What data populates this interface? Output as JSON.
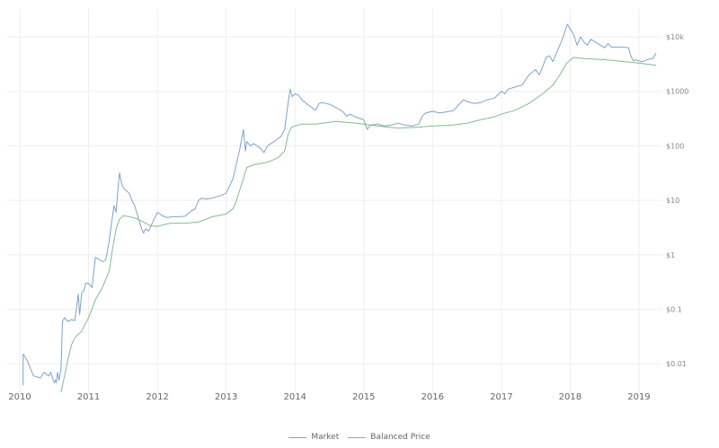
{
  "chart_data": {
    "type": "line",
    "title": "",
    "xlabel": "",
    "ylabel": "",
    "y_scale": "log",
    "ylim": [
      0.003,
      20000
    ],
    "xlim": [
      2009.85,
      2019.35
    ],
    "grid": true,
    "legend_position": "bottom-center",
    "x_ticks": [
      "2010",
      "2011",
      "2012",
      "2013",
      "2014",
      "2015",
      "2016",
      "2017",
      "2018",
      "2019"
    ],
    "y_ticks": [
      {
        "value": 10000,
        "label": "$10k"
      },
      {
        "value": 1000,
        "label": "$1000"
      },
      {
        "value": 100,
        "label": "$100"
      },
      {
        "value": 10,
        "label": "$10"
      },
      {
        "value": 1,
        "label": "$1"
      },
      {
        "value": 0.1,
        "label": "$0.1"
      },
      {
        "value": 0.01,
        "label": "$0.01"
      }
    ],
    "series": [
      {
        "name": "Market",
        "color": "#7fa3c8",
        "points": [
          [
            2010.05,
            0.004
          ],
          [
            2010.05,
            0.015
          ],
          [
            2010.1,
            0.012
          ],
          [
            2010.2,
            0.006
          ],
          [
            2010.3,
            0.0055
          ],
          [
            2010.35,
            0.007
          ],
          [
            2010.42,
            0.006
          ],
          [
            2010.45,
            0.007
          ],
          [
            2010.5,
            0.0045
          ],
          [
            2010.52,
            0.005
          ],
          [
            2010.53,
            0.0045
          ],
          [
            2010.55,
            0.007
          ],
          [
            2010.57,
            0.005
          ],
          [
            2010.6,
            0.008
          ],
          [
            2010.62,
            0.06
          ],
          [
            2010.65,
            0.07
          ],
          [
            2010.7,
            0.06
          ],
          [
            2010.75,
            0.065
          ],
          [
            2010.8,
            0.062
          ],
          [
            2010.85,
            0.19
          ],
          [
            2010.87,
            0.08
          ],
          [
            2010.9,
            0.2
          ],
          [
            2010.93,
            0.22
          ],
          [
            2010.96,
            0.3
          ],
          [
            2011.0,
            0.3
          ],
          [
            2011.05,
            0.25
          ],
          [
            2011.1,
            0.9
          ],
          [
            2011.13,
            0.85
          ],
          [
            2011.17,
            0.8
          ],
          [
            2011.2,
            0.75
          ],
          [
            2011.25,
            0.8
          ],
          [
            2011.3,
            1.8
          ],
          [
            2011.33,
            3.5
          ],
          [
            2011.37,
            8
          ],
          [
            2011.4,
            6
          ],
          [
            2011.43,
            18
          ],
          [
            2011.45,
            32
          ],
          [
            2011.48,
            20
          ],
          [
            2011.52,
            16
          ],
          [
            2011.55,
            15
          ],
          [
            2011.6,
            13
          ],
          [
            2011.63,
            10
          ],
          [
            2011.67,
            8
          ],
          [
            2011.7,
            6
          ],
          [
            2011.73,
            4.5
          ],
          [
            2011.77,
            3
          ],
          [
            2011.8,
            2.5
          ],
          [
            2011.83,
            3
          ],
          [
            2011.87,
            2.7
          ],
          [
            2011.9,
            3.2
          ],
          [
            2011.95,
            4.5
          ],
          [
            2012.0,
            6
          ],
          [
            2012.05,
            5.5
          ],
          [
            2012.1,
            5
          ],
          [
            2012.15,
            4.8
          ],
          [
            2012.2,
            5
          ],
          [
            2012.3,
            5
          ],
          [
            2012.4,
            5.1
          ],
          [
            2012.5,
            6.5
          ],
          [
            2012.55,
            7
          ],
          [
            2012.6,
            10
          ],
          [
            2012.65,
            11
          ],
          [
            2012.7,
            10.5
          ],
          [
            2012.8,
            11
          ],
          [
            2012.9,
            12
          ],
          [
            2013.0,
            13.5
          ],
          [
            2013.1,
            25
          ],
          [
            2013.2,
            90
          ],
          [
            2013.25,
            200
          ],
          [
            2013.28,
            80
          ],
          [
            2013.3,
            120
          ],
          [
            2013.35,
            100
          ],
          [
            2013.4,
            110
          ],
          [
            2013.5,
            90
          ],
          [
            2013.55,
            75
          ],
          [
            2013.6,
            100
          ],
          [
            2013.7,
            120
          ],
          [
            2013.8,
            150
          ],
          [
            2013.85,
            200
          ],
          [
            2013.9,
            600
          ],
          [
            2013.93,
            1100
          ],
          [
            2013.96,
            800
          ],
          [
            2014.0,
            900
          ],
          [
            2014.05,
            850
          ],
          [
            2014.1,
            700
          ],
          [
            2014.2,
            550
          ],
          [
            2014.3,
            450
          ],
          [
            2014.35,
            600
          ],
          [
            2014.4,
            620
          ],
          [
            2014.5,
            580
          ],
          [
            2014.6,
            500
          ],
          [
            2014.7,
            420
          ],
          [
            2014.75,
            350
          ],
          [
            2014.8,
            380
          ],
          [
            2014.9,
            330
          ],
          [
            2015.0,
            300
          ],
          [
            2015.05,
            200
          ],
          [
            2015.1,
            240
          ],
          [
            2015.2,
            250
          ],
          [
            2015.3,
            230
          ],
          [
            2015.4,
            240
          ],
          [
            2015.5,
            260
          ],
          [
            2015.6,
            240
          ],
          [
            2015.7,
            230
          ],
          [
            2015.8,
            250
          ],
          [
            2015.85,
            350
          ],
          [
            2015.9,
            400
          ],
          [
            2016.0,
            430
          ],
          [
            2016.1,
            400
          ],
          [
            2016.2,
            420
          ],
          [
            2016.3,
            440
          ],
          [
            2016.45,
            700
          ],
          [
            2016.5,
            650
          ],
          [
            2016.6,
            600
          ],
          [
            2016.7,
            620
          ],
          [
            2016.8,
            700
          ],
          [
            2016.9,
            750
          ],
          [
            2017.0,
            1000
          ],
          [
            2017.05,
            900
          ],
          [
            2017.1,
            1100
          ],
          [
            2017.2,
            1200
          ],
          [
            2017.3,
            1300
          ],
          [
            2017.4,
            2000
          ],
          [
            2017.5,
            2500
          ],
          [
            2017.55,
            2000
          ],
          [
            2017.6,
            2800
          ],
          [
            2017.65,
            4200
          ],
          [
            2017.7,
            4500
          ],
          [
            2017.75,
            3500
          ],
          [
            2017.8,
            5000
          ],
          [
            2017.85,
            7000
          ],
          [
            2017.9,
            10000
          ],
          [
            2017.96,
            17000
          ],
          [
            2018.0,
            14000
          ],
          [
            2018.05,
            11000
          ],
          [
            2018.1,
            7000
          ],
          [
            2018.15,
            10000
          ],
          [
            2018.2,
            8000
          ],
          [
            2018.25,
            7000
          ],
          [
            2018.3,
            9000
          ],
          [
            2018.4,
            7500
          ],
          [
            2018.5,
            6300
          ],
          [
            2018.55,
            7500
          ],
          [
            2018.6,
            6500
          ],
          [
            2018.7,
            6500
          ],
          [
            2018.8,
            6400
          ],
          [
            2018.85,
            6300
          ],
          [
            2018.88,
            4500
          ],
          [
            2018.92,
            3600
          ],
          [
            2018.95,
            3800
          ],
          [
            2019.0,
            3600
          ],
          [
            2019.05,
            3500
          ],
          [
            2019.1,
            3700
          ],
          [
            2019.15,
            3900
          ],
          [
            2019.2,
            4000
          ],
          [
            2019.25,
            5000
          ]
        ]
      },
      {
        "name": "Balanced Price",
        "color": "#82bb8c",
        "points": [
          [
            2010.6,
            0.003
          ],
          [
            2010.65,
            0.006
          ],
          [
            2010.7,
            0.012
          ],
          [
            2010.75,
            0.022
          ],
          [
            2010.8,
            0.03
          ],
          [
            2010.9,
            0.04
          ],
          [
            2011.0,
            0.07
          ],
          [
            2011.1,
            0.15
          ],
          [
            2011.2,
            0.25
          ],
          [
            2011.3,
            0.5
          ],
          [
            2011.35,
            1.3
          ],
          [
            2011.4,
            3
          ],
          [
            2011.45,
            4.5
          ],
          [
            2011.5,
            5.2
          ],
          [
            2011.6,
            5.0
          ],
          [
            2011.7,
            4.6
          ],
          [
            2011.8,
            4.0
          ],
          [
            2011.9,
            3.4
          ],
          [
            2012.0,
            3.3
          ],
          [
            2012.1,
            3.6
          ],
          [
            2012.2,
            3.8
          ],
          [
            2012.4,
            3.8
          ],
          [
            2012.6,
            4.0
          ],
          [
            2012.8,
            5.0
          ],
          [
            2013.0,
            5.6
          ],
          [
            2013.1,
            7
          ],
          [
            2013.15,
            10
          ],
          [
            2013.25,
            25
          ],
          [
            2013.3,
            40
          ],
          [
            2013.4,
            45
          ],
          [
            2013.6,
            50
          ],
          [
            2013.75,
            60
          ],
          [
            2013.85,
            80
          ],
          [
            2013.9,
            160
          ],
          [
            2013.95,
            220
          ],
          [
            2014.1,
            250
          ],
          [
            2014.3,
            250
          ],
          [
            2014.6,
            280
          ],
          [
            2014.9,
            260
          ],
          [
            2015.2,
            230
          ],
          [
            2015.5,
            210
          ],
          [
            2015.8,
            220
          ],
          [
            2016.0,
            230
          ],
          [
            2016.3,
            240
          ],
          [
            2016.5,
            260
          ],
          [
            2016.7,
            300
          ],
          [
            2016.9,
            340
          ],
          [
            2017.0,
            380
          ],
          [
            2017.2,
            450
          ],
          [
            2017.4,
            600
          ],
          [
            2017.6,
            900
          ],
          [
            2017.75,
            1300
          ],
          [
            2017.85,
            2000
          ],
          [
            2017.95,
            3300
          ],
          [
            2018.05,
            4200
          ],
          [
            2018.2,
            4000
          ],
          [
            2018.5,
            3800
          ],
          [
            2018.8,
            3500
          ],
          [
            2019.0,
            3300
          ],
          [
            2019.25,
            3000
          ]
        ]
      }
    ]
  },
  "legend": {
    "items": [
      {
        "label": "Market",
        "color": "#7fa3c8"
      },
      {
        "label": "Balanced Price",
        "color": "#82bb8c"
      }
    ]
  }
}
